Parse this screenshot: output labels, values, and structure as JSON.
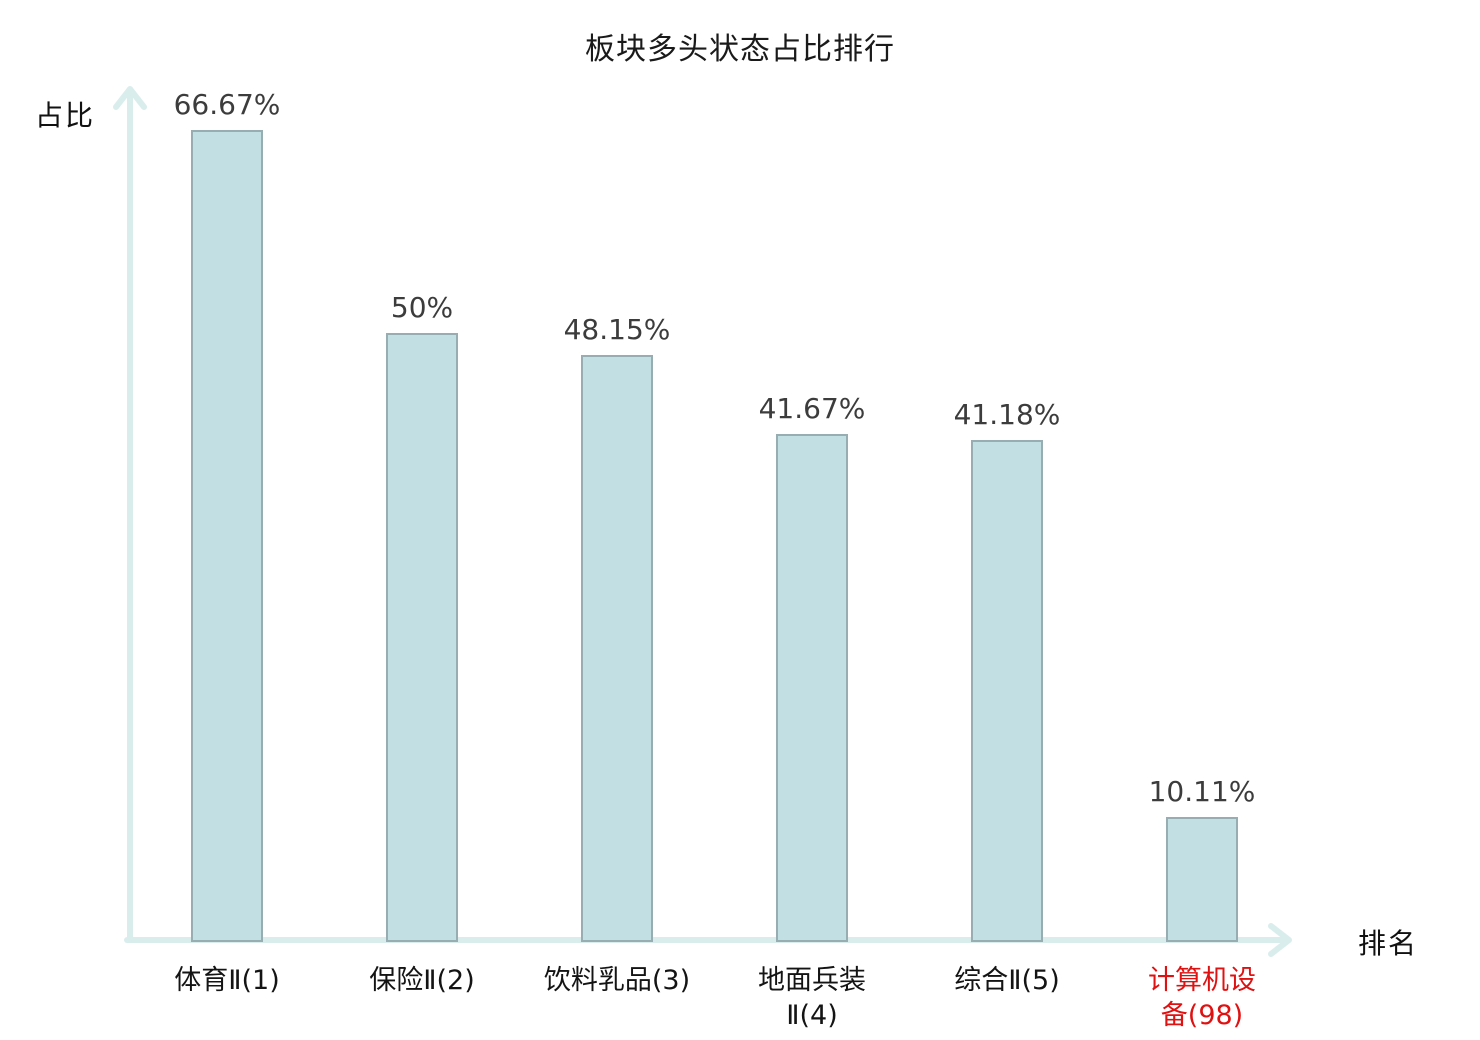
{
  "chart_data": {
    "type": "bar",
    "title": "板块多头状态占比排行",
    "ylabel": "占比",
    "xlabel": "排名",
    "categories": [
      "体育Ⅱ(1)",
      "保险Ⅱ(2)",
      "饮料乳品(3)",
      "地面兵装\nⅡ(4)",
      "综合Ⅱ(5)",
      "计算机设\n备(98)"
    ],
    "values": [
      66.67,
      50,
      48.15,
      41.67,
      41.18,
      10.11
    ],
    "value_labels": [
      "66.67%",
      "50%",
      "48.15%",
      "41.67%",
      "41.18%",
      "10.11%"
    ],
    "highlight_index": 5,
    "ylim": [
      0,
      66.67
    ],
    "grid": false,
    "legend": "none",
    "colors": {
      "bar_fill": "#c2e0e4",
      "bar_border": "#97adb1",
      "axis": "#daeded",
      "value_label": "#3c3c3c",
      "category_label": "#141414",
      "highlight_label": "#e01111",
      "title": "#1a1a1a",
      "background": "#ffffff"
    }
  }
}
